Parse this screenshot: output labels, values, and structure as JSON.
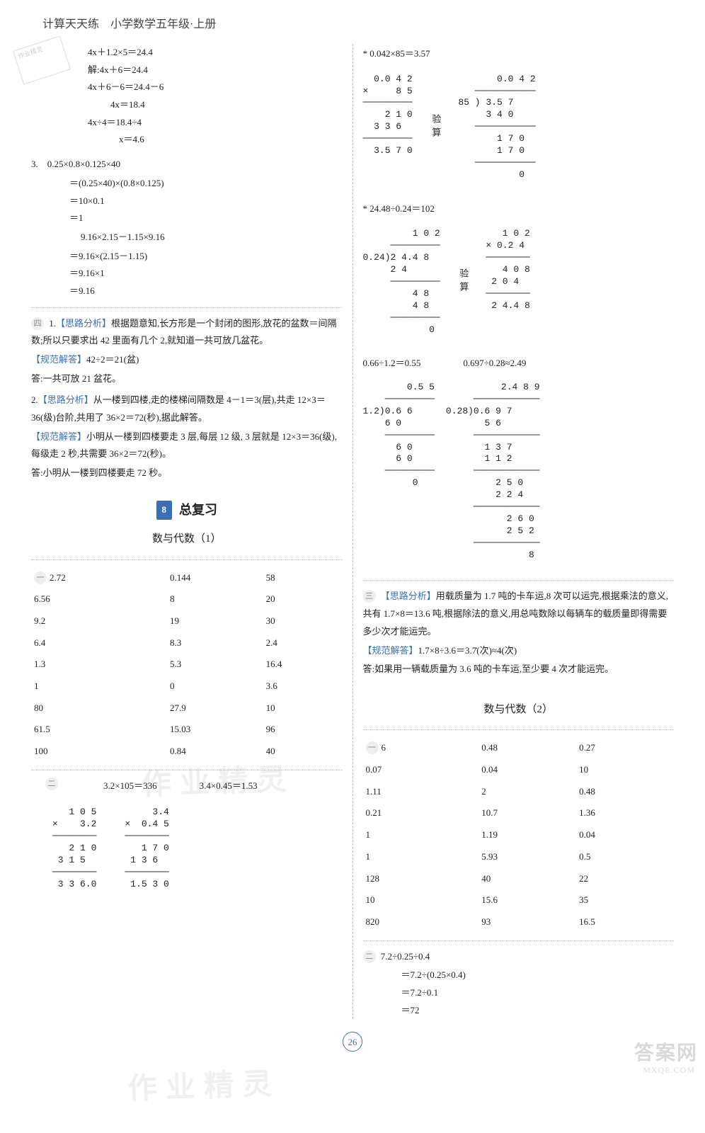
{
  "header": {
    "title": "计算天天练　小学数学五年级·上册"
  },
  "left": {
    "eq_block": [
      "4x＋1.2×5＝24.4",
      "解:4x＋6＝24.4",
      "4x＋6－6＝24.4－6",
      "4x＝18.4",
      "4x÷4＝18.4÷4",
      "x＝4.6"
    ],
    "p3_head": "3.　0.25×0.8×0.125×40",
    "p3_lines": [
      "＝(0.25×40)×(0.8×0.125)",
      "＝10×0.1",
      "＝1"
    ],
    "p3b_head": "9.16×2.15－1.15×9.16",
    "p3b_lines": [
      "＝9.16×(2.15－1.15)",
      "＝9.16×1",
      "＝9.16"
    ],
    "circle4": "四",
    "q1_analysis_label": "【思路分析】",
    "q1_analysis": "根据题意知,长方形是一个封闭的图形,放花的盆数＝间隔数;所以只要求出 42 里面有几个 2,就知道一共可放几盆花。",
    "q1_norm_label": "【规范解答】",
    "q1_norm": "42÷2＝21(盆)",
    "q1_ans": "答:一共可放 21 盆花。",
    "q2_analysis": "从一楼到四楼,走的楼梯间隔数是 4－1＝3(层),共走 12×3＝36(级)台阶,共用了 36×2＝72(秒),据此解答。",
    "q2_norm": "小明从一楼到四楼要走 3 层,每层 12 级, 3 层就是 12×3＝36(级),每级走 2 秒,共需要 36×2＝72(秒)。",
    "q2_ans": "答:小明从一楼到四楼要走 72 秒。",
    "section_num": "8",
    "section_title": "总复习",
    "sub1": "数与代数（1）",
    "table1": {
      "rows": [
        [
          "2.72",
          "0.144",
          "58"
        ],
        [
          "6.56",
          "8",
          "20"
        ],
        [
          "9.2",
          "19",
          "30"
        ],
        [
          "6.4",
          "8.3",
          "2.4"
        ],
        [
          "1.3",
          "5.3",
          "16.4"
        ],
        [
          "1",
          "0",
          "3.6"
        ],
        [
          "80",
          "27.9",
          "10"
        ],
        [
          "61.5",
          "15.03",
          "96"
        ],
        [
          "100",
          "0.84",
          "40"
        ]
      ]
    },
    "calc2_head_a": "3.2×105＝336",
    "calc2_head_b": "3.4×0.45＝1.53",
    "vcalc_a": "   1 0 5\n×    3.2\n────────\n   2 1 0\n 3 1 5\n────────\n 3 3 6.0",
    "vcalc_b": "     3.4\n×  0.4 5\n────────\n   1 7 0\n 1 3 6\n────────\n 1.5 3 0"
  },
  "right": {
    "r1_head": "* 0.042×85＝3.57",
    "r1_calc_a": "  0.0 4 2\n×     8 5\n─────────\n    2 1 0\n  3 3 6\n─────────\n  3.5 7 0",
    "r1_calc_b": "       0.0 4 2\n   ───────────\n85 ) 3.5 7\n     3 4 0\n   ───────────\n       1 7 0\n       1 7 0\n   ───────────\n           0",
    "r1_side": "验算",
    "r2_head": "* 24.48÷0.24＝102",
    "r2_calc_a": "         1 0 2\n     ─────────\n0.24)2 4.4 8\n     2 4\n     ─────────\n         4 8\n         4 8\n     ─────────\n            0",
    "r2_calc_b": "   1 0 2\n× 0.2 4\n────────\n   4 0 8\n 2 0 4\n────────\n 2 4.4 8",
    "r2_side": "验算",
    "r3a_head": "0.66÷1.2＝0.55",
    "r3b_head": "0.697÷0.28≈2.49",
    "r3a_calc": "        0.5 5\n    ─────────\n1.2)0.6 6\n    6 0\n    ─────────\n      6 0\n      6 0\n    ─────────\n         0",
    "r3b_calc": "          2.4 8 9\n     ────────────\n0.28)0.6 9 7\n       5 6\n     ────────────\n       1 3 7\n       1 1 2\n     ────────────\n         2 5 0\n         2 2 4\n     ────────────\n           2 6 0\n           2 5 2\n     ────────────\n               8",
    "circle3": "三",
    "q3_analysis": "用载质量为 1.7 吨的卡车运,8 次可以运完,根据乘法的意义,共有 1.7×8＝13.6 吨,根据除法的意义,用总吨数除以每辆车的载质量即得需要多少次才能运完。",
    "q3_norm": "1.7×8÷3.6＝3.7̇(次)≈4(次)",
    "q3_ans": "答:如果用一辆载质量为 3.6 吨的卡车运,至少要 4 次才能运完。",
    "sub2": "数与代数（2）",
    "table2": {
      "rows": [
        [
          "6",
          "0.48",
          "0.27"
        ],
        [
          "0.07",
          "0.04",
          "10"
        ],
        [
          "1.11",
          "2",
          "0.48"
        ],
        [
          "0.21",
          "10.7",
          "1.36"
        ],
        [
          "1",
          "1.19",
          "0.04"
        ],
        [
          "1",
          "5.93",
          "0.5"
        ],
        [
          "128",
          "40",
          "22"
        ],
        [
          "10",
          "15.6",
          "35"
        ],
        [
          "820",
          "93",
          "16.5"
        ]
      ]
    },
    "calc3_head": "7.2÷0.25÷0.4",
    "calc3_lines": [
      "＝7.2÷(0.25×0.4)",
      "＝7.2÷0.1",
      "＝72"
    ]
  },
  "page_number": "26",
  "watermark": "作业精灵",
  "site": "答案网",
  "site_sub": "MXQE.COM",
  "stamp": "作业精灵"
}
